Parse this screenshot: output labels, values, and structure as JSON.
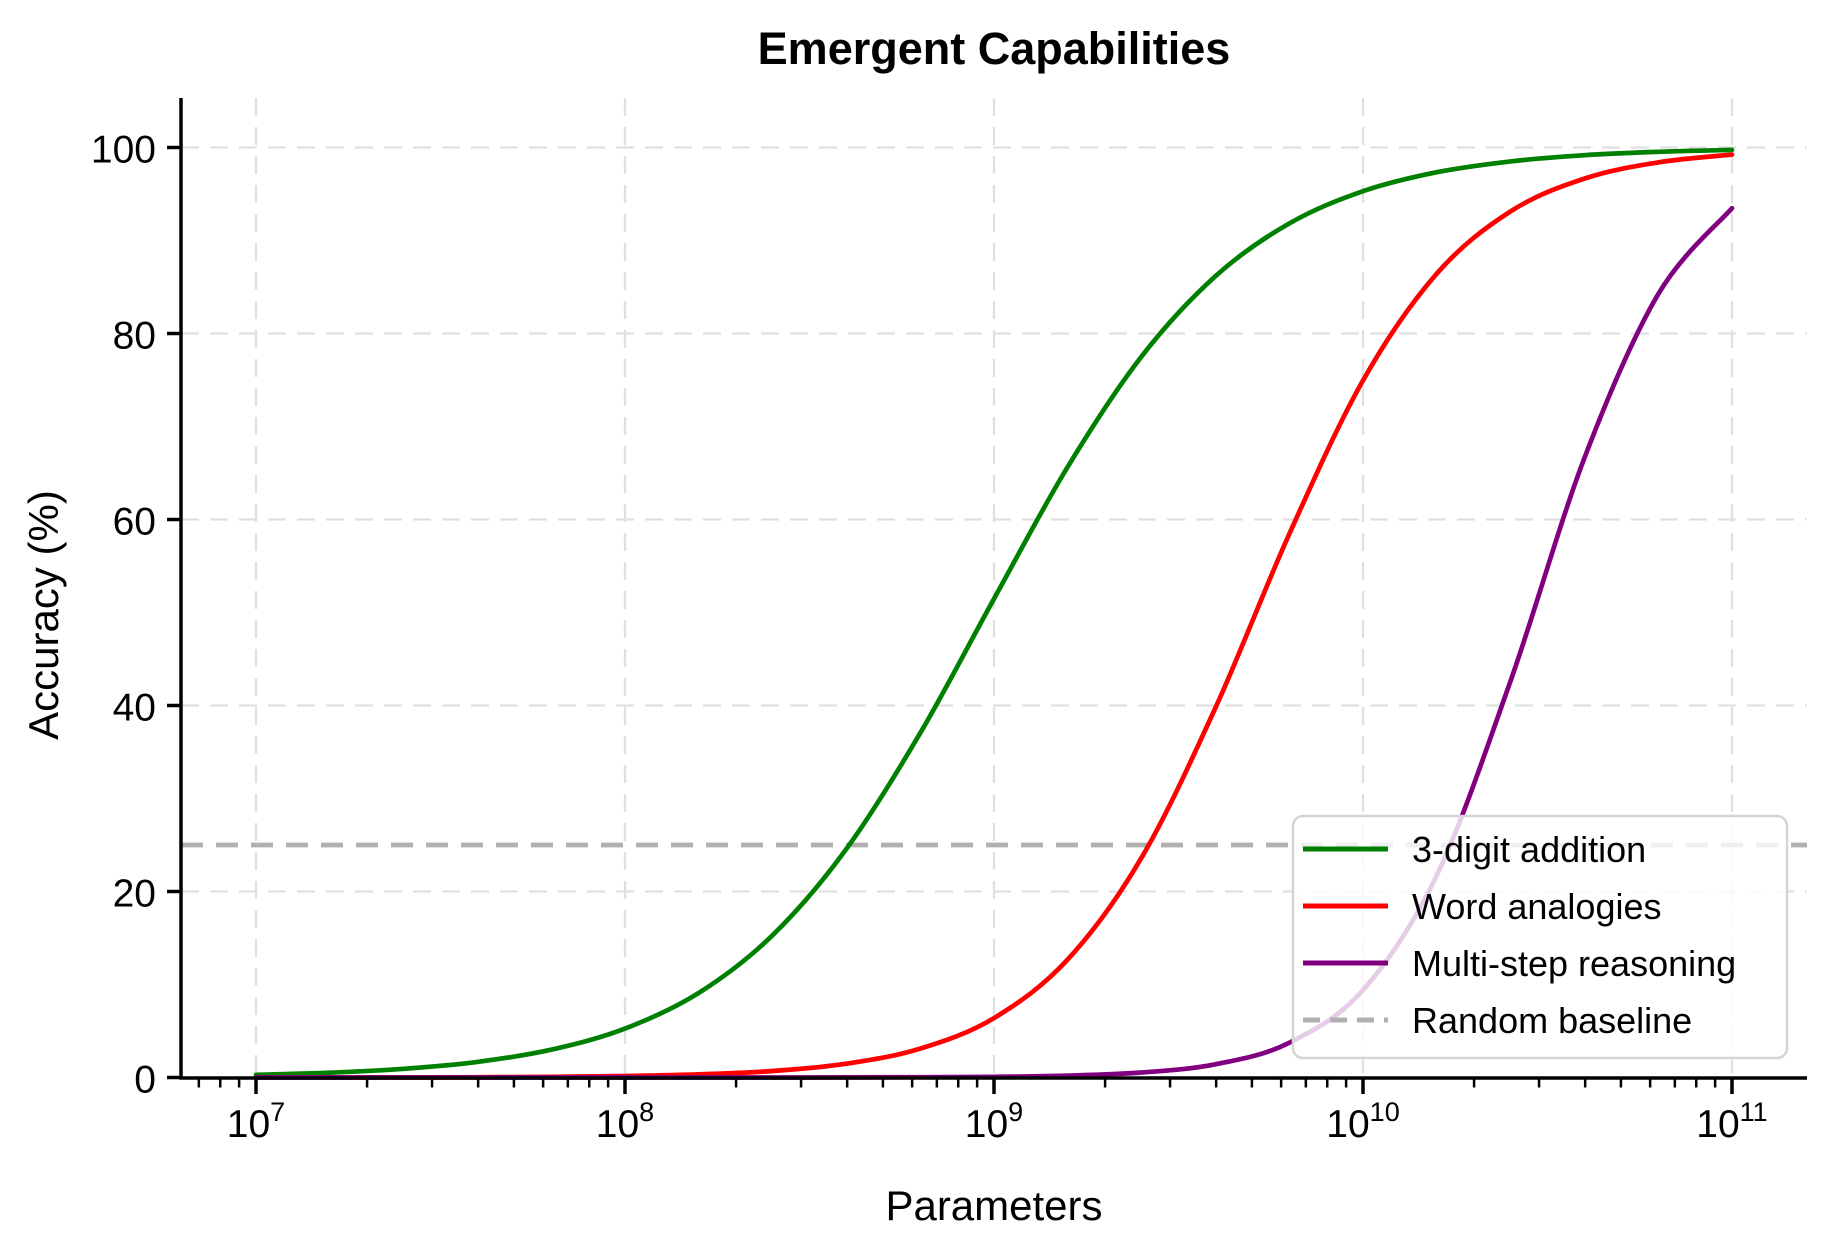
{
  "title": "Emergent Capabilities",
  "axes": {
    "xlabel": "Parameters",
    "ylabel": "Accuracy (%)",
    "x_ticks": [
      {
        "base": "10",
        "exp": "7"
      },
      {
        "base": "10",
        "exp": "8"
      },
      {
        "base": "10",
        "exp": "9"
      },
      {
        "base": "10",
        "exp": "10"
      },
      {
        "base": "10",
        "exp": "11"
      }
    ],
    "y_ticks": [
      "0",
      "20",
      "40",
      "60",
      "80",
      "100"
    ]
  },
  "chart_data": {
    "type": "line",
    "title": "Emergent Capabilities",
    "xlabel": "Parameters",
    "ylabel": "Accuracy (%)",
    "x_axis": {
      "scale": "log10",
      "tick_exponents": [
        7,
        8,
        9,
        10,
        11
      ],
      "range_log10": [
        6.8,
        11.2
      ]
    },
    "y_axis": {
      "ticks": [
        0,
        20,
        40,
        60,
        80,
        100
      ],
      "range": [
        0,
        105
      ]
    },
    "grid": {
      "visible": true,
      "style": "dashed",
      "color": "#e0e0e0"
    },
    "legend_position": "lower right",
    "x_log10": [
      7.0,
      7.2,
      7.4,
      7.6,
      7.8,
      8.0,
      8.2,
      8.4,
      8.6,
      8.8,
      9.0,
      9.2,
      9.4,
      9.6,
      9.8,
      10.0,
      10.2,
      10.4,
      10.6,
      10.8,
      11.0
    ],
    "series": [
      {
        "name": "3-digit addition",
        "color": "#008000",
        "style": "solid",
        "values": [
          0.29,
          0.52,
          0.94,
          1.68,
          2.99,
          5.26,
          9.1,
          15.3,
          24.58,
          37.03,
          51.47,
          65.68,
          77.54,
          86.16,
          91.83,
          95.3,
          97.34,
          98.5,
          99.17,
          99.54,
          99.74
        ]
      },
      {
        "name": "Word analogies",
        "color": "#ff0000",
        "style": "solid",
        "values": [
          0.0,
          0.01,
          0.02,
          0.03,
          0.07,
          0.16,
          0.33,
          0.7,
          1.48,
          3.11,
          6.39,
          12.7,
          23.65,
          39.74,
          58.42,
          74.95,
          86.44,
          93.13,
          96.66,
          98.4,
          99.24
        ]
      },
      {
        "name": "Multi-step reasoning",
        "color": "#800080",
        "style": "solid",
        "values": [
          0.0,
          0.0,
          0.0,
          0.0,
          0.0,
          0.0,
          0.0,
          0.0,
          0.01,
          0.03,
          0.08,
          0.2,
          0.54,
          1.42,
          3.73,
          9.4,
          21.74,
          42.66,
          66.6,
          84.23,
          93.47
        ]
      },
      {
        "name": "Random baseline",
        "color": "#b0b0b0",
        "style": "dashed",
        "value": 25
      }
    ]
  }
}
